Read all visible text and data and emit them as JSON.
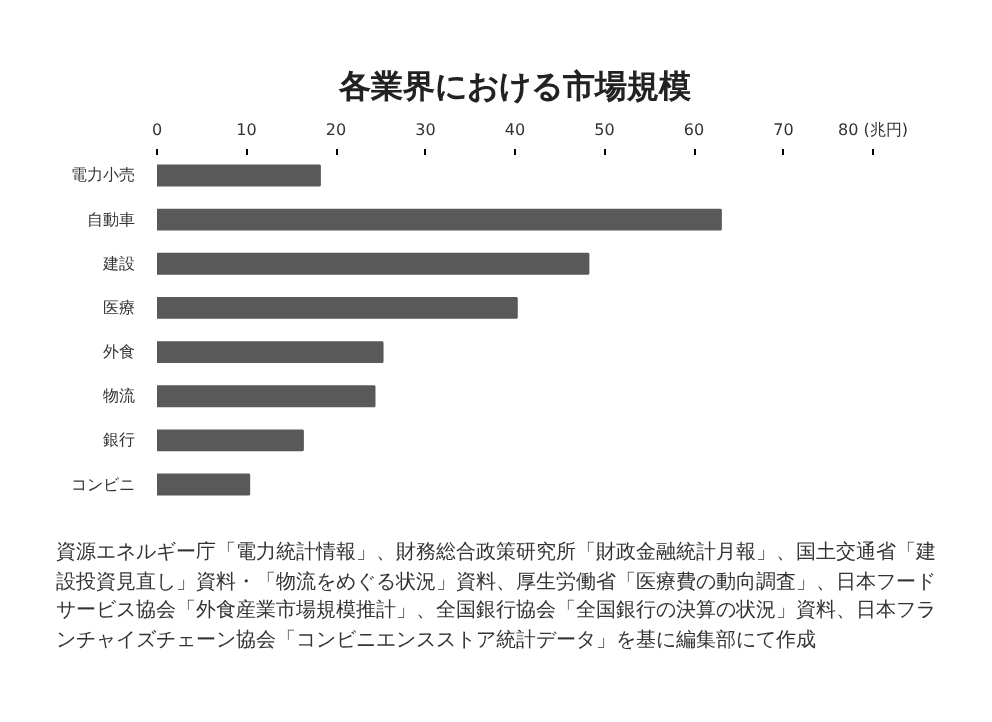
{
  "chart_data": {
    "type": "bar",
    "orientation": "horizontal",
    "title": "各業界における市場規模",
    "categories": [
      "電力小売",
      "自動車",
      "建設",
      "医療",
      "外食",
      "物流",
      "銀行",
      "コンビニ"
    ],
    "values": [
      18.2,
      63,
      48.2,
      40.2,
      25.2,
      24.3,
      16.3,
      10.3
    ],
    "color": "#595959",
    "xlim": [
      0,
      80
    ],
    "xticks": [
      0,
      10,
      20,
      30,
      40,
      50,
      60,
      70,
      {
        "value": 80,
        "label": "80 (兆円)"
      }
    ],
    "grid": false,
    "annotations": [
      "資源エネルギー庁「電力統計情報」、財務総合政策研究所「財政金融統計月報」、国土交通省「建設投資見直し」資料・「物流をめぐる状況」資料、厚生労働省「医療費の動向調査」、日本フードサービス協会「外食産業市場規模推計」、全国銀行協会「全国銀行の決算の状況」資料、日本フランチャイズチェーン協会「コンビニエンスストア統計データ」を基に編集部にて作成"
    ]
  }
}
